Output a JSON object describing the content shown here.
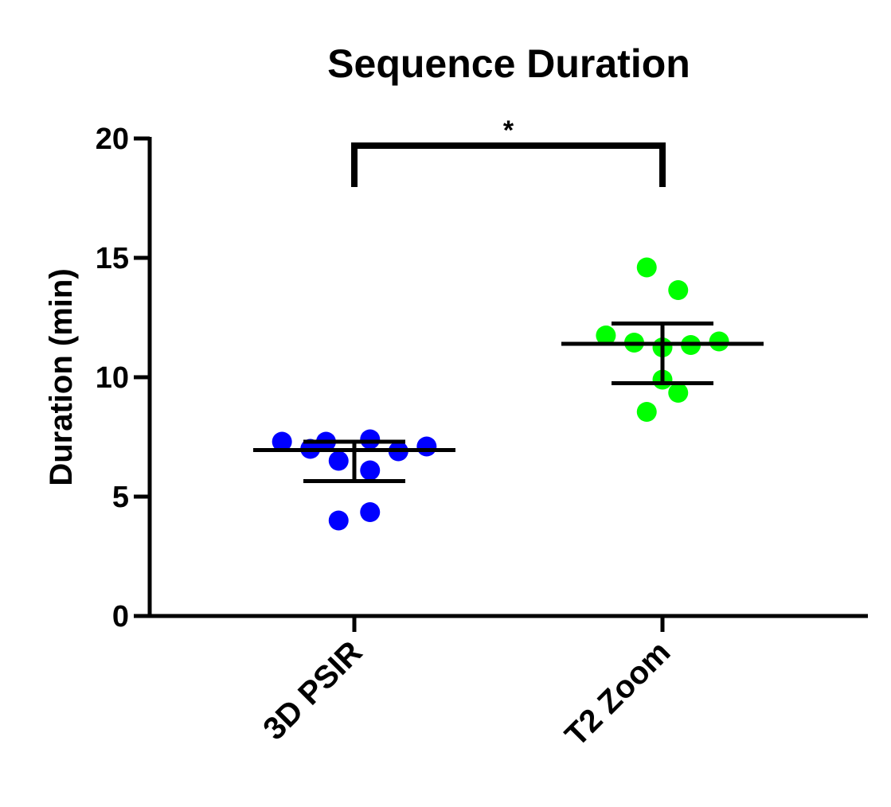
{
  "chart_data": {
    "type": "scatter",
    "title": "Sequence Duration",
    "ylabel": "Duration  (min)",
    "xlabel": "",
    "ylim": [
      0,
      20
    ],
    "yticks": [
      0,
      5,
      10,
      15,
      20
    ],
    "categories": [
      "3D PSIR",
      "T2 Zoom"
    ],
    "grid": false,
    "legend": "none",
    "series": [
      {
        "category": "3D PSIR",
        "color": "#0000ff",
        "points": [
          {
            "offset": -0.23,
            "y": 7.3
          },
          {
            "offset": -0.14,
            "y": 7.0
          },
          {
            "offset": -0.09,
            "y": 7.3
          },
          {
            "offset": -0.05,
            "y": 6.5
          },
          {
            "offset": 0.05,
            "y": 7.4
          },
          {
            "offset": 0.05,
            "y": 6.1
          },
          {
            "offset": 0.14,
            "y": 6.9
          },
          {
            "offset": 0.23,
            "y": 7.1
          },
          {
            "offset": -0.05,
            "y": 4.0
          },
          {
            "offset": 0.05,
            "y": 4.35
          }
        ],
        "mean": 6.95,
        "error_low": 5.65,
        "error_high": 7.3
      },
      {
        "category": "T2 Zoom",
        "color": "#00ff00",
        "points": [
          {
            "offset": -0.05,
            "y": 14.6
          },
          {
            "offset": 0.05,
            "y": 13.65
          },
          {
            "offset": -0.18,
            "y": 11.75
          },
          {
            "offset": -0.09,
            "y": 11.45
          },
          {
            "offset": 0.0,
            "y": 11.25
          },
          {
            "offset": 0.09,
            "y": 11.35
          },
          {
            "offset": 0.18,
            "y": 11.5
          },
          {
            "offset": 0.0,
            "y": 9.9
          },
          {
            "offset": 0.05,
            "y": 9.35
          },
          {
            "offset": -0.05,
            "y": 8.55
          }
        ],
        "mean": 11.4,
        "error_low": 9.75,
        "error_high": 12.25
      }
    ],
    "annotations": [
      {
        "type": "significance",
        "from": "3D PSIR",
        "to": "T2 Zoom",
        "y": 19.7,
        "label": "*"
      }
    ]
  }
}
